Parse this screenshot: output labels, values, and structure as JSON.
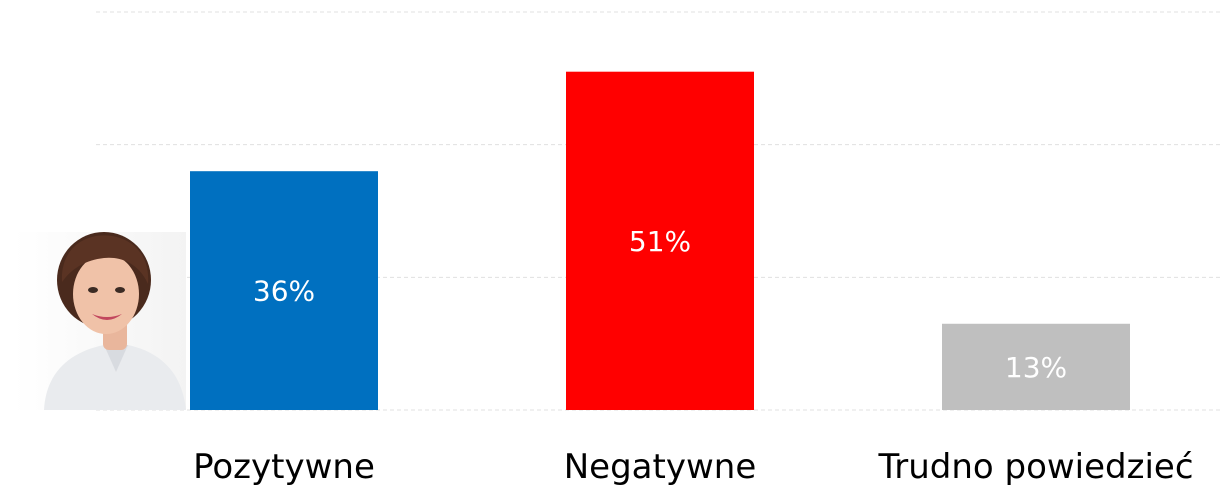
{
  "chart_data": {
    "type": "bar",
    "categories": [
      "Pozytywne",
      "Negatywne",
      "Trudno powiedzieć"
    ],
    "values": [
      36,
      51,
      13
    ],
    "value_labels": [
      "36%",
      "51%",
      "13%"
    ],
    "colors": [
      "#0070C0",
      "#FF0000",
      "#BFBFBF"
    ],
    "ylim": [
      0,
      60
    ],
    "grid": true,
    "legend": "none"
  },
  "portrait": {
    "icon": "person-portrait"
  }
}
